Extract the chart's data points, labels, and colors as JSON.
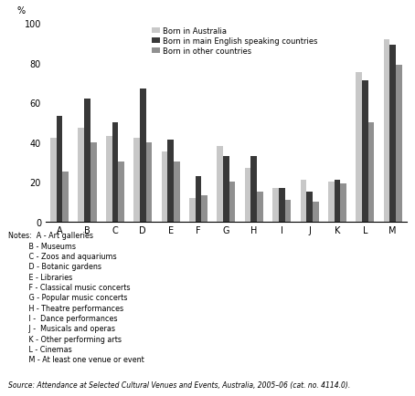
{
  "categories": [
    "A",
    "B",
    "C",
    "D",
    "E",
    "F",
    "G",
    "H",
    "I",
    "J",
    "K",
    "L",
    "M"
  ],
  "series": {
    "Born in Australia": [
      42,
      47,
      43,
      42,
      35,
      12,
      38,
      27,
      17,
      21,
      20,
      75,
      92
    ],
    "Born in main English speaking countries": [
      53,
      62,
      50,
      67,
      41,
      23,
      33,
      33,
      17,
      15,
      21,
      71,
      89
    ],
    "Born in other countries": [
      25,
      40,
      30,
      40,
      30,
      13,
      20,
      15,
      11,
      10,
      19,
      50,
      79
    ]
  },
  "colors": {
    "Born in Australia": "#c8c8c8",
    "Born in main English speaking countries": "#383838",
    "Born in other countries": "#909090"
  },
  "ylim": [
    0,
    100
  ],
  "yticks": [
    0,
    20,
    40,
    60,
    80,
    100
  ],
  "ylabel": "%",
  "notes_line1": "Notes:  A - Art galleries",
  "notes_rest": [
    "B - Museums",
    "C - Zoos and aquariums",
    "D - Botanic gardens",
    "E - Libraries",
    "F - Classical music concerts",
    "G - Popular music concerts",
    "H - Theatre performances",
    "I -  Dance performances",
    "J -  Musicals and operas",
    "K - Other performing arts",
    "L - Cinemas",
    "M - At least one venue or event"
  ],
  "source": "Source: Attendance at Selected Cultural Venues and Events, Australia, 2005–06 (cat. no. 4114.0).",
  "legend_labels": [
    "Born in Australia",
    "Born in main English speaking countries",
    "Born in other countries"
  ],
  "bar_width": 0.22,
  "figure_width": 4.54,
  "figure_height": 4.35,
  "dpi": 100
}
